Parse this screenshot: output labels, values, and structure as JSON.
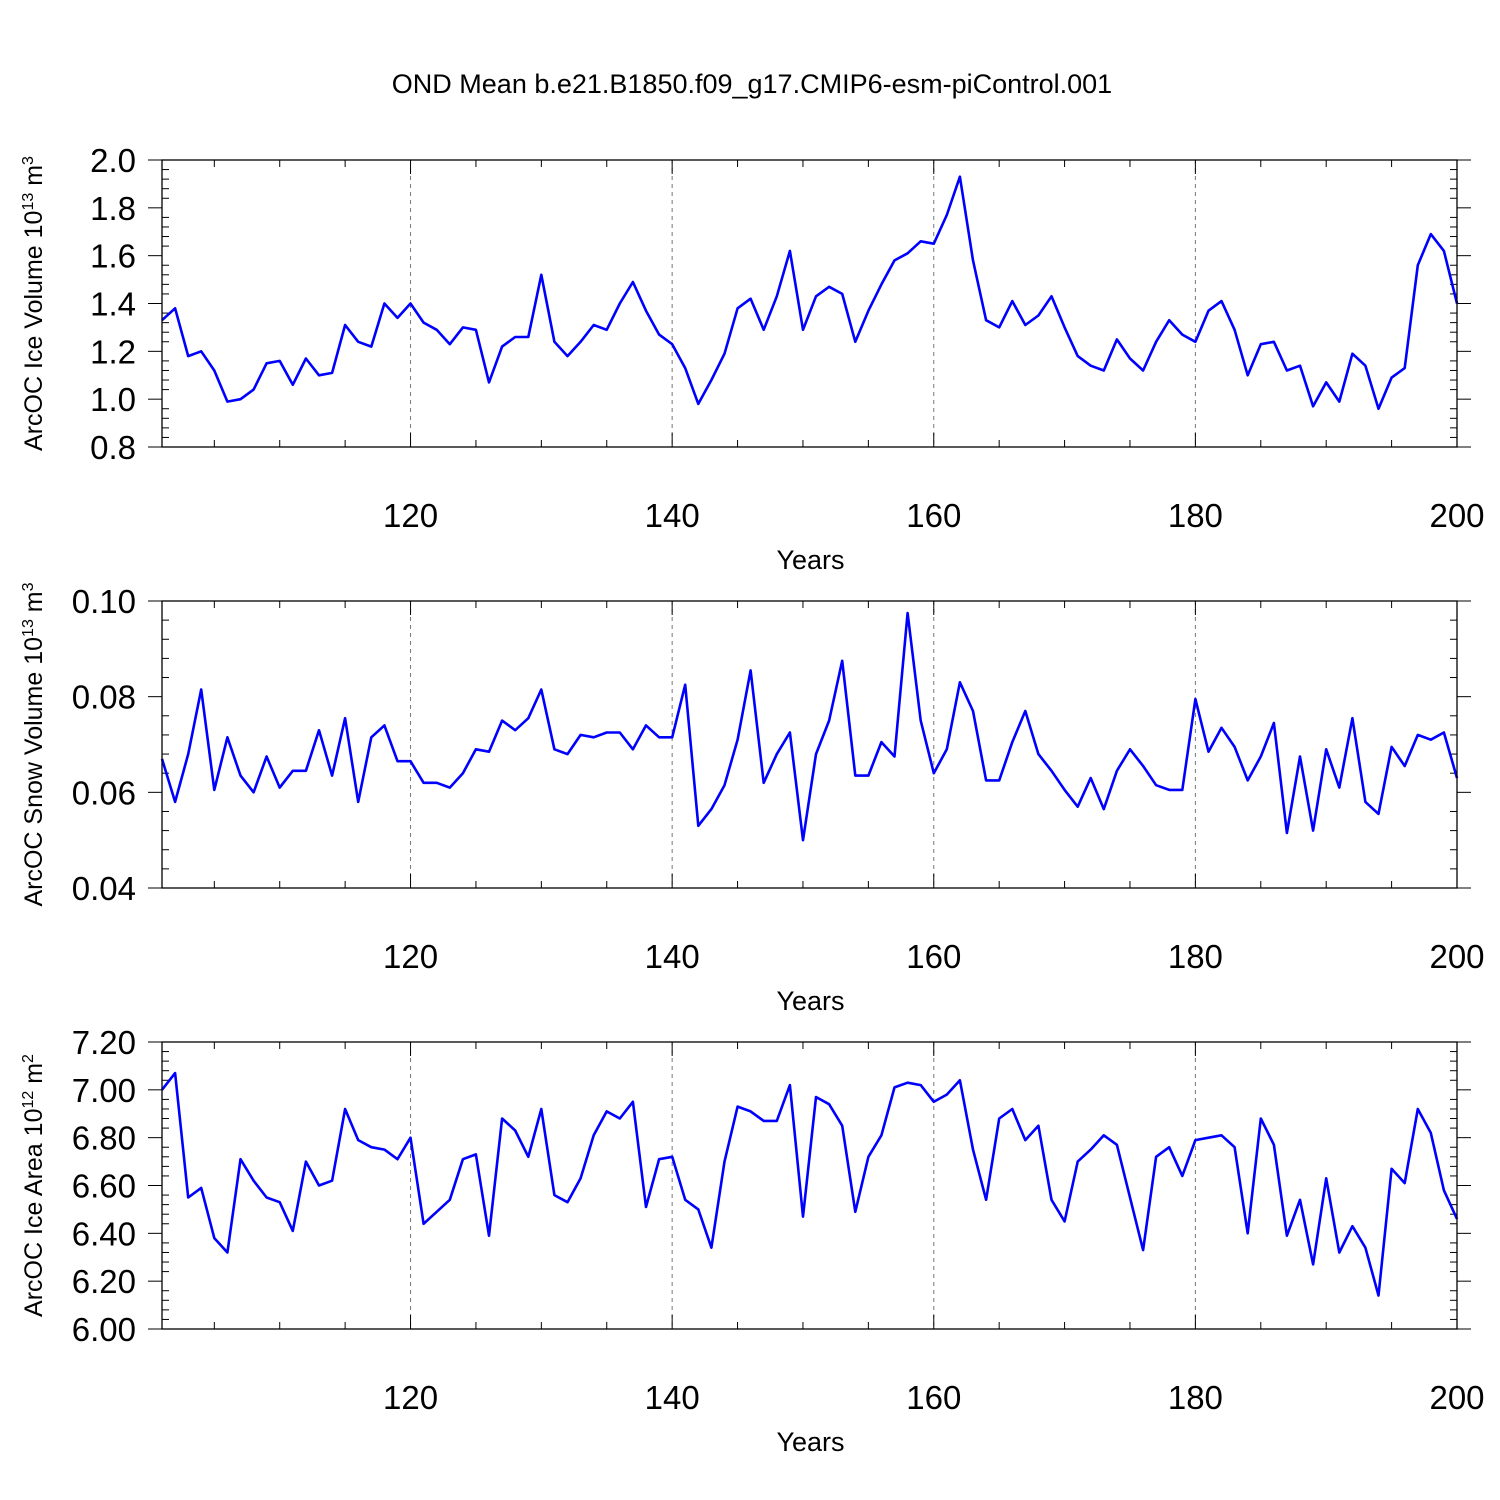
{
  "title": "OND Mean b.e21.B1850.f09_g17.CMIP6-esm-piControl.001",
  "line_color": "#0000ff",
  "grid_color": "#777777",
  "chart_data": [
    {
      "type": "line",
      "panel": "ice-volume",
      "ylabel": {
        "main": "ArcOC Ice Volume 10",
        "exp": "13",
        "unit": " m",
        "unit_exp": "3"
      },
      "xlabel": "Years",
      "xlim": [
        101,
        200
      ],
      "ylim": [
        0.8,
        2.0
      ],
      "xticks": [
        120,
        140,
        160,
        180,
        200
      ],
      "xtick_labels": [
        "120",
        "140",
        "160",
        "180",
        "200"
      ],
      "yticks": [
        0.8,
        1.0,
        1.2,
        1.4,
        1.6,
        1.8,
        2.0
      ],
      "ytick_labels": [
        "0.8",
        "1.0",
        "1.2",
        "1.4",
        "1.6",
        "1.8",
        "2.0"
      ],
      "grid": "vertical dashed at major x ticks",
      "series": [
        {
          "name": "ArcOC Ice Volume",
          "x_start": 101,
          "values": [
            1.33,
            1.38,
            1.18,
            1.2,
            1.12,
            0.99,
            1.0,
            1.04,
            1.15,
            1.16,
            1.06,
            1.17,
            1.1,
            1.11,
            1.31,
            1.24,
            1.22,
            1.4,
            1.34,
            1.4,
            1.32,
            1.29,
            1.23,
            1.3,
            1.29,
            1.07,
            1.22,
            1.26,
            1.26,
            1.52,
            1.24,
            1.18,
            1.24,
            1.31,
            1.29,
            1.4,
            1.49,
            1.37,
            1.27,
            1.23,
            1.13,
            0.98,
            1.08,
            1.19,
            1.38,
            1.42,
            1.29,
            1.43,
            1.62,
            1.29,
            1.43,
            1.47,
            1.44,
            1.24,
            1.37,
            1.48,
            1.58,
            1.61,
            1.66,
            1.65,
            1.77,
            1.93,
            1.58,
            1.33,
            1.3,
            1.41,
            1.31,
            1.35,
            1.43,
            1.3,
            1.18,
            1.14,
            1.12,
            1.25,
            1.17,
            1.12,
            1.24,
            1.33,
            1.27,
            1.24,
            1.37,
            1.41,
            1.29,
            1.1,
            1.23,
            1.24,
            1.12,
            1.14,
            0.97,
            1.07,
            0.99,
            1.19,
            1.14,
            0.96,
            1.09,
            1.13,
            1.56,
            1.69,
            1.62,
            1.4
          ]
        }
      ]
    },
    {
      "type": "line",
      "panel": "snow-volume",
      "ylabel": {
        "main": "ArcOC Snow Volume 10",
        "exp": "13",
        "unit": " m",
        "unit_exp": "3"
      },
      "xlabel": "Years",
      "xlim": [
        101,
        200
      ],
      "ylim": [
        0.04,
        0.1
      ],
      "xticks": [
        120,
        140,
        160,
        180,
        200
      ],
      "xtick_labels": [
        "120",
        "140",
        "160",
        "180",
        "200"
      ],
      "yticks": [
        0.04,
        0.06,
        0.08,
        0.1
      ],
      "ytick_labels": [
        "0.04",
        "0.06",
        "0.08",
        "0.10"
      ],
      "grid": "vertical dashed at major x ticks",
      "series": [
        {
          "name": "ArcOC Snow Volume",
          "x_start": 101,
          "values": [
            0.067,
            0.058,
            0.068,
            0.0815,
            0.0605,
            0.0715,
            0.0635,
            0.06,
            0.0675,
            0.061,
            0.0645,
            0.0645,
            0.073,
            0.0635,
            0.0755,
            0.058,
            0.0715,
            0.074,
            0.0665,
            0.0665,
            0.062,
            0.062,
            0.061,
            0.064,
            0.069,
            0.0685,
            0.075,
            0.073,
            0.0755,
            0.0815,
            0.069,
            0.068,
            0.072,
            0.0715,
            0.0725,
            0.0725,
            0.069,
            0.074,
            0.0715,
            0.0715,
            0.0825,
            0.053,
            0.0565,
            0.0615,
            0.071,
            0.0855,
            0.062,
            0.068,
            0.0725,
            0.05,
            0.068,
            0.075,
            0.0875,
            0.0635,
            0.0635,
            0.0705,
            0.0675,
            0.0975,
            0.075,
            0.064,
            0.069,
            0.083,
            0.077,
            0.0625,
            0.0625,
            0.0705,
            0.077,
            0.068,
            0.0645,
            0.0605,
            0.057,
            0.063,
            0.0565,
            0.0645,
            0.069,
            0.0655,
            0.0615,
            0.0605,
            0.0605,
            0.0795,
            0.0685,
            0.0735,
            0.0695,
            0.0625,
            0.0675,
            0.0745,
            0.0515,
            0.0675,
            0.052,
            0.069,
            0.061,
            0.0755,
            0.058,
            0.0555,
            0.0695,
            0.0655,
            0.072,
            0.071,
            0.0725,
            0.063
          ]
        }
      ]
    },
    {
      "type": "line",
      "panel": "ice-area",
      "ylabel": {
        "main": "ArcOC Ice Area 10",
        "exp": "12",
        "unit": " m",
        "unit_exp": "2"
      },
      "xlabel": "Years",
      "xlim": [
        101,
        200
      ],
      "ylim": [
        6.0,
        7.2
      ],
      "xticks": [
        120,
        140,
        160,
        180,
        200
      ],
      "xtick_labels": [
        "120",
        "140",
        "160",
        "180",
        "200"
      ],
      "yticks": [
        6.0,
        6.2,
        6.4,
        6.6,
        6.8,
        7.0,
        7.2
      ],
      "ytick_labels": [
        "6.00",
        "6.20",
        "6.40",
        "6.60",
        "6.80",
        "7.00",
        "7.20"
      ],
      "grid": "vertical dashed at major x ticks",
      "series": [
        {
          "name": "ArcOC Ice Area",
          "x_start": 101,
          "values": [
            7.0,
            7.07,
            6.55,
            6.59,
            6.38,
            6.32,
            6.71,
            6.62,
            6.55,
            6.53,
            6.41,
            6.7,
            6.6,
            6.62,
            6.92,
            6.79,
            6.76,
            6.75,
            6.71,
            6.8,
            6.44,
            6.49,
            6.54,
            6.71,
            6.73,
            6.39,
            6.88,
            6.83,
            6.72,
            6.92,
            6.56,
            6.53,
            6.63,
            6.81,
            6.91,
            6.88,
            6.95,
            6.51,
            6.71,
            6.72,
            6.54,
            6.5,
            6.34,
            6.7,
            6.93,
            6.91,
            6.87,
            6.87,
            7.02,
            6.47,
            6.97,
            6.94,
            6.85,
            6.49,
            6.72,
            6.81,
            7.01,
            7.03,
            7.02,
            6.95,
            6.98,
            7.04,
            6.75,
            6.54,
            6.88,
            6.92,
            6.79,
            6.85,
            6.54,
            6.45,
            6.7,
            6.75,
            6.81,
            6.77,
            6.55,
            6.33,
            6.72,
            6.76,
            6.64,
            6.79,
            6.8,
            6.81,
            6.76,
            6.4,
            6.88,
            6.77,
            6.39,
            6.54,
            6.27,
            6.63,
            6.32,
            6.43,
            6.34,
            6.14,
            6.67,
            6.61,
            6.92,
            6.82,
            6.58,
            6.46
          ]
        }
      ]
    }
  ]
}
